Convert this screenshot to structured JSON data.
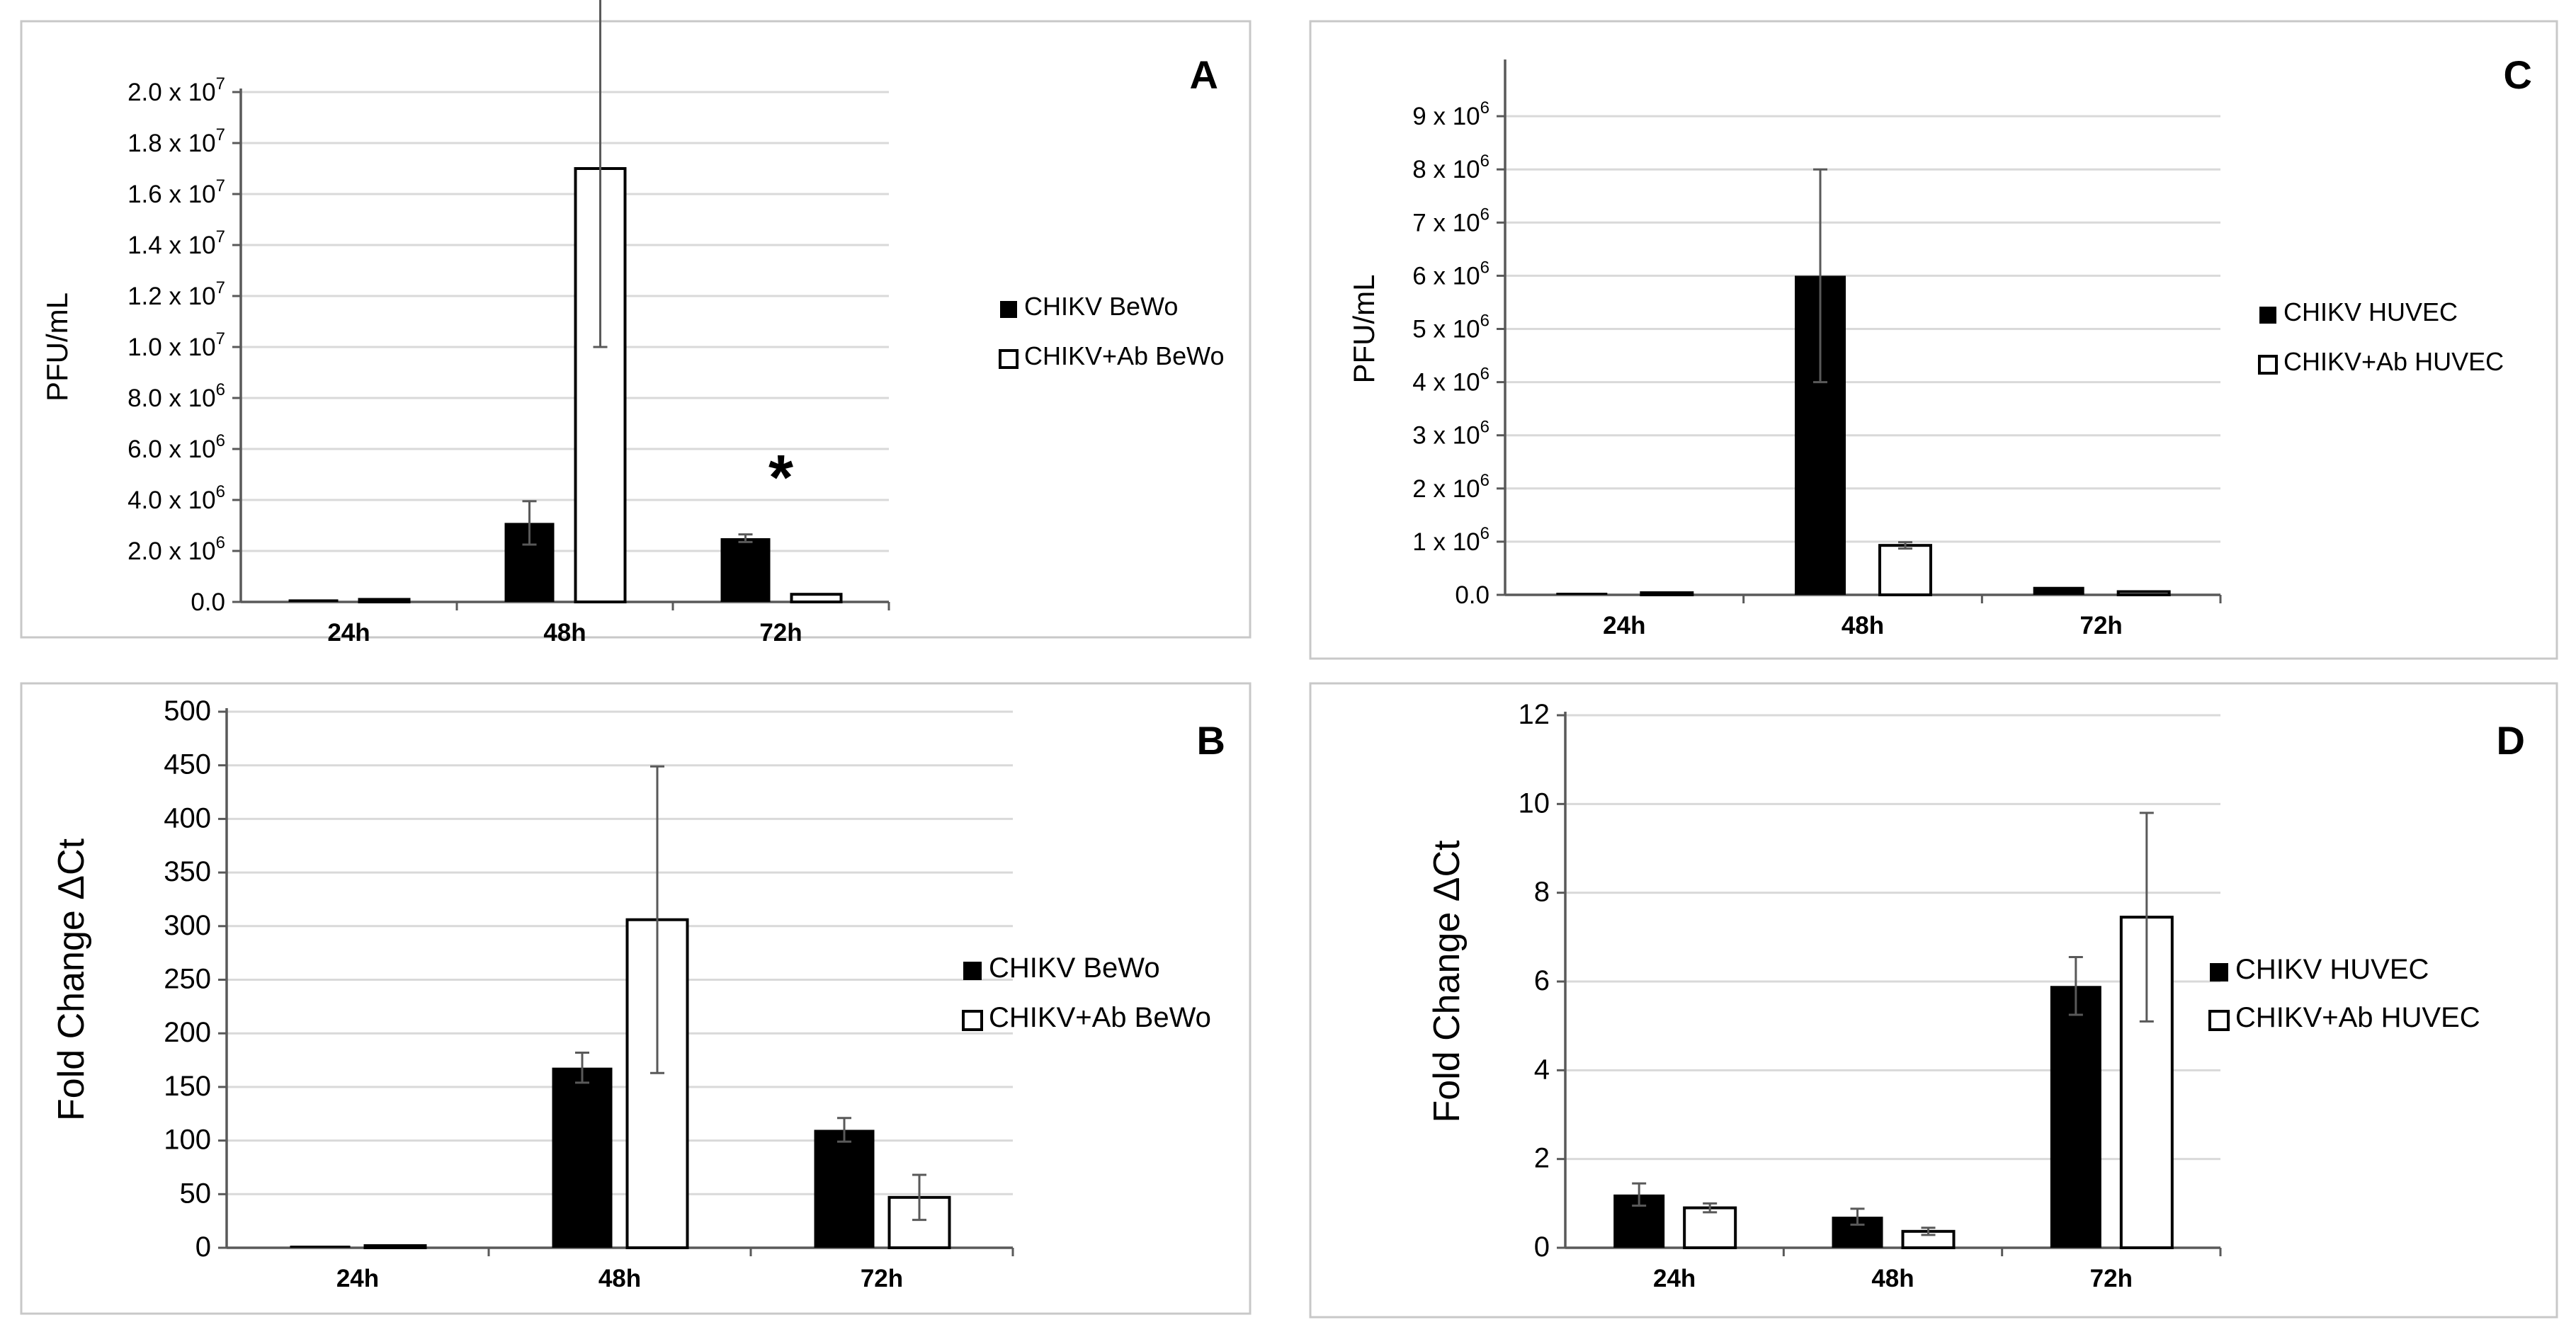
{
  "chart_data": [
    {
      "panel": "A",
      "type": "bar",
      "categories": [
        "24h",
        "48h",
        "72h"
      ],
      "series": [
        {
          "name": "CHIKV BeWo",
          "fill": "black",
          "values": [
            100000,
            3100000,
            2500000
          ],
          "errors": [
            0,
            850000,
            150000
          ]
        },
        {
          "name": "CHIKV+Ab BeWo",
          "fill": "white",
          "values": [
            100000,
            17000000,
            300000
          ],
          "errors": [
            0,
            7000000,
            0
          ]
        }
      ],
      "ylabel": "PFU/mL",
      "ylim": [
        0,
        20000000
      ],
      "ytick_labels": [
        {
          "value": 0,
          "text": "0.0"
        },
        {
          "value": 2000000,
          "text": "2.0 x 10",
          "sup": "6"
        },
        {
          "value": 4000000,
          "text": "4.0 x 10",
          "sup": "6"
        },
        {
          "value": 6000000,
          "text": "6.0 x 10",
          "sup": "6"
        },
        {
          "value": 8000000,
          "text": "8.0 x 10",
          "sup": "6"
        },
        {
          "value": 10000000,
          "text": "1.0 x 10",
          "sup": "7"
        },
        {
          "value": 12000000,
          "text": "1.2 x 10",
          "sup": "7"
        },
        {
          "value": 14000000,
          "text": "1.4 x 10",
          "sup": "7"
        },
        {
          "value": 16000000,
          "text": "1.6 x 10",
          "sup": "7"
        },
        {
          "value": 18000000,
          "text": "1.8 x 10",
          "sup": "7"
        },
        {
          "value": 20000000,
          "text": "2.0 x 10",
          "sup": "7"
        }
      ],
      "annotations": [
        {
          "text": "*",
          "category": "72h",
          "value": 5000000
        }
      ],
      "legend_position": "right",
      "grid": true
    },
    {
      "panel": "B",
      "type": "bar",
      "categories": [
        "24h",
        "48h",
        "72h"
      ],
      "series": [
        {
          "name": "CHIKV BeWo",
          "fill": "black",
          "values": [
            1,
            168,
            110
          ],
          "errors": [
            0,
            14,
            11
          ]
        },
        {
          "name": "CHIKV+Ab BeWo",
          "fill": "white",
          "values": [
            2,
            306,
            47
          ],
          "errors": [
            0,
            143,
            21
          ]
        }
      ],
      "ylabel": "Fold Change ΔCt",
      "ylim": [
        0,
        500
      ],
      "ytick_labels": [
        {
          "value": 0,
          "text": "0"
        },
        {
          "value": 50,
          "text": "50"
        },
        {
          "value": 100,
          "text": "100"
        },
        {
          "value": 150,
          "text": "150"
        },
        {
          "value": 200,
          "text": "200"
        },
        {
          "value": 250,
          "text": "250"
        },
        {
          "value": 300,
          "text": "300"
        },
        {
          "value": 350,
          "text": "350"
        },
        {
          "value": 400,
          "text": "400"
        },
        {
          "value": 450,
          "text": "450"
        },
        {
          "value": 500,
          "text": "500"
        }
      ],
      "annotations": [],
      "legend_position": "right",
      "grid": true
    },
    {
      "panel": "C",
      "type": "bar",
      "categories": [
        "24h",
        "48h",
        "72h"
      ],
      "series": [
        {
          "name": "CHIKV HUVEC",
          "fill": "black",
          "values": [
            20000,
            6000000,
            150000
          ],
          "errors": [
            0,
            2000000,
            0
          ]
        },
        {
          "name": "CHIKV+Ab HUVEC",
          "fill": "white",
          "values": [
            30000,
            930000,
            60000
          ],
          "errors": [
            0,
            60000,
            0
          ]
        }
      ],
      "ylabel": "PFU/mL",
      "ylim": [
        0,
        10000000
      ],
      "ytick_labels": [
        {
          "value": 0,
          "text": "0.0"
        },
        {
          "value": 1000000,
          "text": "1 x 10",
          "sup": "6"
        },
        {
          "value": 2000000,
          "text": "2 x 10",
          "sup": "6"
        },
        {
          "value": 3000000,
          "text": "3 x 10",
          "sup": "6"
        },
        {
          "value": 4000000,
          "text": "4 x 10",
          "sup": "6"
        },
        {
          "value": 5000000,
          "text": "5 x 10",
          "sup": "6"
        },
        {
          "value": 6000000,
          "text": "6 x 10",
          "sup": "6"
        },
        {
          "value": 7000000,
          "text": "7 x 10",
          "sup": "6"
        },
        {
          "value": 8000000,
          "text": "8 x 10",
          "sup": "6"
        },
        {
          "value": 9000000,
          "text": "9 x 10",
          "sup": "6"
        }
      ],
      "annotations": [],
      "legend_position": "right",
      "grid": true
    },
    {
      "panel": "D",
      "type": "bar",
      "categories": [
        "24h",
        "48h",
        "72h"
      ],
      "series": [
        {
          "name": "CHIKV HUVEC",
          "fill": "black",
          "values": [
            1.2,
            0.7,
            5.9
          ],
          "errors": [
            0.25,
            0.18,
            0.65
          ]
        },
        {
          "name": "CHIKV+Ab HUVEC",
          "fill": "white",
          "values": [
            0.9,
            0.37,
            7.45
          ],
          "errors": [
            0.1,
            0.08,
            2.35
          ]
        }
      ],
      "ylabel": "Fold Change ΔCt",
      "ylim": [
        0,
        12
      ],
      "ytick_labels": [
        {
          "value": 0,
          "text": "0"
        },
        {
          "value": 2,
          "text": "2"
        },
        {
          "value": 4,
          "text": "4"
        },
        {
          "value": 6,
          "text": "6"
        },
        {
          "value": 8,
          "text": "8"
        },
        {
          "value": 10,
          "text": "10"
        },
        {
          "value": 12,
          "text": "12"
        }
      ],
      "annotations": [],
      "legend_position": "right",
      "grid": true
    }
  ]
}
